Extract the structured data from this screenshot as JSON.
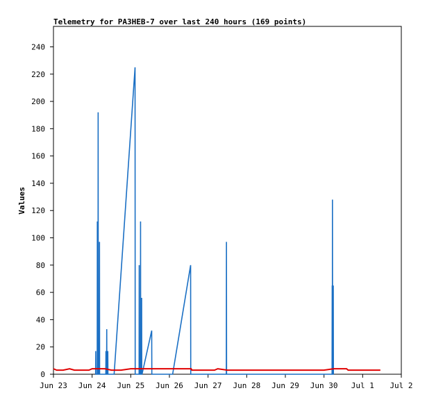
{
  "chart_data": {
    "type": "line",
    "title": "Telemetry for PA3HEB-7 over last 240 hours (169 points)",
    "xlabel": "",
    "ylabel": "Values",
    "xlim": [
      "2024-06-23 00:00",
      "2024-07-02 00:00"
    ],
    "ylim": [
      0,
      255
    ],
    "x_ticks": [
      "Jun 23",
      "Jun 24",
      "Jun 25",
      "Jun 26",
      "Jun 27",
      "Jun 28",
      "Jun 29",
      "Jun 30",
      "Jul 1",
      "Jul 2"
    ],
    "y_ticks": [
      0,
      20,
      40,
      60,
      80,
      100,
      120,
      140,
      160,
      180,
      200,
      220,
      240
    ],
    "grid": false,
    "series": [
      {
        "color": "#1a6fc4",
        "points": [
          [
            "2024-06-24 02:10",
            0
          ],
          [
            "2024-06-24 02:15",
            17
          ],
          [
            "2024-06-24 02:20",
            0
          ],
          [
            "2024-06-24 03:10",
            0
          ],
          [
            "2024-06-24 03:15",
            112
          ],
          [
            "2024-06-24 03:20",
            0
          ],
          [
            "2024-06-24 03:40",
            0
          ],
          [
            "2024-06-24 03:45",
            192
          ],
          [
            "2024-06-24 03:50",
            0
          ],
          [
            "2024-06-24 04:30",
            0
          ],
          [
            "2024-06-24 04:35",
            97
          ],
          [
            "2024-06-24 04:40",
            0
          ],
          [
            "2024-06-24 08:30",
            0
          ],
          [
            "2024-06-24 08:35",
            17
          ],
          [
            "2024-06-24 08:40",
            0
          ],
          [
            "2024-06-24 09:00",
            0
          ],
          [
            "2024-06-24 09:05",
            33
          ],
          [
            "2024-06-24 09:10",
            0
          ],
          [
            "2024-06-24 09:40",
            0
          ],
          [
            "2024-06-24 09:45",
            17
          ],
          [
            "2024-06-24 09:50",
            0
          ],
          [
            "2024-06-24 13:40",
            0
          ],
          [
            "2024-06-25 02:40",
            225
          ],
          [
            "2024-06-25 02:45",
            0
          ],
          [
            "2024-06-25 04:00",
            0
          ],
          [
            "2024-06-25 04:05",
            0
          ],
          [
            "2024-06-25 05:10",
            0
          ],
          [
            "2024-06-25 05:15",
            80
          ],
          [
            "2024-06-25 05:20",
            0
          ],
          [
            "2024-06-25 06:00",
            0
          ],
          [
            "2024-06-25 06:05",
            112
          ],
          [
            "2024-06-25 06:10",
            0
          ],
          [
            "2024-06-25 06:40",
            0
          ],
          [
            "2024-06-25 06:45",
            56
          ],
          [
            "2024-06-25 06:50",
            0
          ],
          [
            "2024-06-25 07:00",
            0
          ],
          [
            "2024-06-25 13:00",
            32
          ],
          [
            "2024-06-25 13:05",
            0
          ],
          [
            "2024-06-26 02:00",
            0
          ],
          [
            "2024-06-26 13:10",
            80
          ],
          [
            "2024-06-26 13:15",
            0
          ],
          [
            "2024-06-27 11:20",
            0
          ],
          [
            "2024-06-27 11:25",
            97
          ],
          [
            "2024-06-27 11:30",
            0
          ],
          [
            "2024-06-30 05:00",
            0
          ],
          [
            "2024-06-30 05:05",
            65
          ],
          [
            "2024-06-30 05:10",
            0
          ],
          [
            "2024-06-30 05:15",
            128
          ],
          [
            "2024-06-30 05:20",
            0
          ],
          [
            "2024-06-30 05:40",
            0
          ],
          [
            "2024-06-30 05:45",
            65
          ],
          [
            "2024-06-30 05:50",
            0
          ]
        ]
      },
      {
        "color": "#e00000",
        "points": [
          [
            "2024-06-23 00:00",
            4
          ],
          [
            "2024-06-23 02:00",
            3
          ],
          [
            "2024-06-23 06:00",
            3
          ],
          [
            "2024-06-23 10:00",
            4
          ],
          [
            "2024-06-23 13:00",
            3
          ],
          [
            "2024-06-23 22:00",
            3
          ],
          [
            "2024-06-24 00:00",
            4
          ],
          [
            "2024-06-24 08:00",
            4
          ],
          [
            "2024-06-24 12:00",
            3
          ],
          [
            "2024-06-24 18:00",
            3
          ],
          [
            "2024-06-25 00:00",
            4
          ],
          [
            "2024-06-25 20:00",
            4
          ],
          [
            "2024-06-26 06:00",
            4
          ],
          [
            "2024-06-26 13:30",
            4
          ],
          [
            "2024-06-26 14:00",
            3
          ],
          [
            "2024-06-27 00:00",
            3
          ],
          [
            "2024-06-27 04:00",
            3
          ],
          [
            "2024-06-27 06:00",
            4
          ],
          [
            "2024-06-27 12:00",
            3
          ],
          [
            "2024-06-28 00:00",
            3
          ],
          [
            "2024-06-29 00:00",
            3
          ],
          [
            "2024-06-30 00:00",
            3
          ],
          [
            "2024-06-30 06:00",
            4
          ],
          [
            "2024-06-30 14:00",
            4
          ],
          [
            "2024-06-30 15:00",
            3
          ],
          [
            "2024-07-01 00:00",
            3
          ],
          [
            "2024-07-01 11:00",
            3
          ]
        ]
      }
    ]
  }
}
